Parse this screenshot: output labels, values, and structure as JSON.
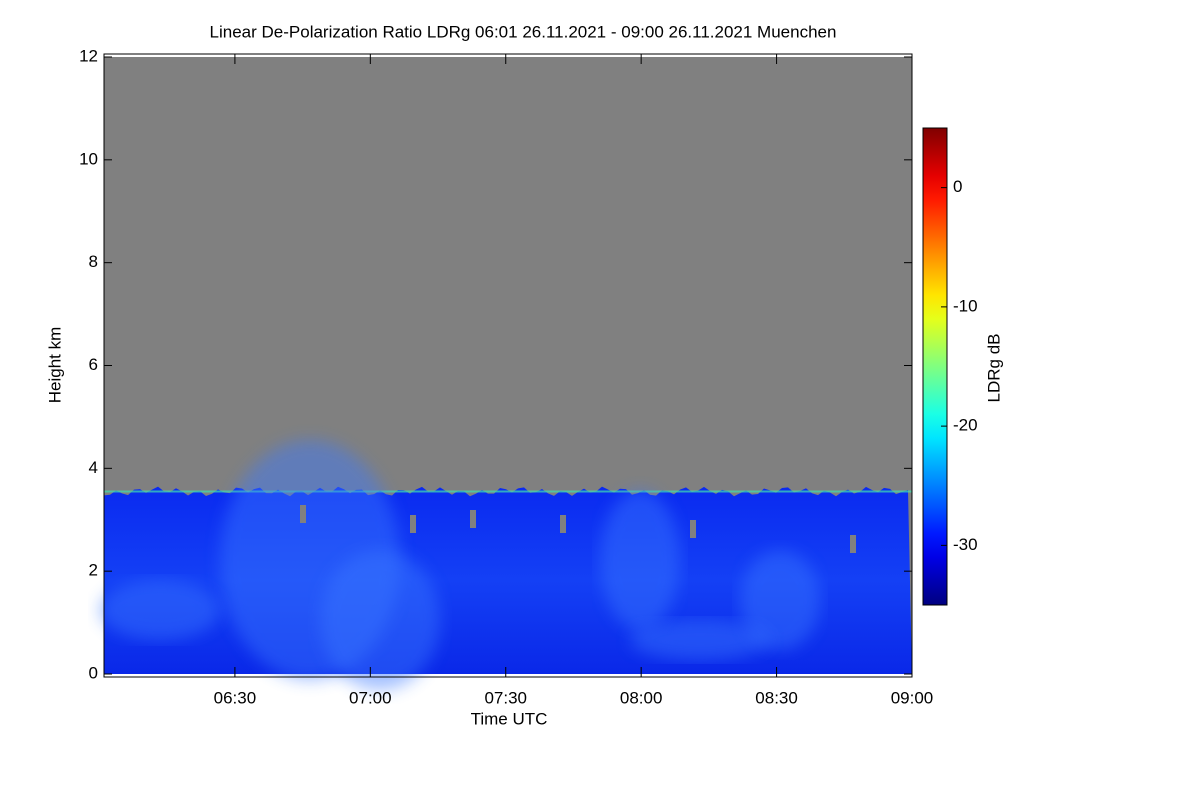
{
  "chart_data": {
    "type": "heatmap",
    "title": "Linear De-Polarization Ratio LDRg   06:01 26.11.2021 - 09:00 26.11.2021 Muenchen",
    "xlabel": "Time UTC",
    "ylabel": "Height km",
    "xlim": [
      361,
      540
    ],
    "xticks": [
      {
        "value": 390,
        "label": "06:30"
      },
      {
        "value": 420,
        "label": "07:00"
      },
      {
        "value": 450,
        "label": "07:30"
      },
      {
        "value": 480,
        "label": "08:00"
      },
      {
        "value": 510,
        "label": "08:30"
      },
      {
        "value": 540,
        "label": "09:00"
      }
    ],
    "ylim": [
      0,
      12
    ],
    "yticks": [
      0,
      2,
      4,
      6,
      8,
      10,
      12
    ],
    "background_color": "#808080",
    "colorbar": {
      "label": "LDRg dB",
      "colormap": "jet",
      "clim": [
        -35,
        5
      ],
      "ticks": [
        0,
        -10,
        -20,
        -30
      ]
    }
  }
}
